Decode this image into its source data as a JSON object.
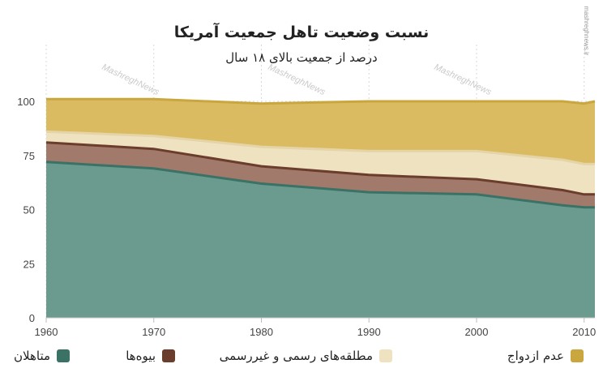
{
  "chart_data": {
    "type": "area",
    "title": "نسبت وضعیت تاهل جمعیت آمریکا",
    "subtitle": "درصد از جمعیت بالای ۱۸ سال",
    "x": [
      1960,
      1970,
      1980,
      1990,
      2000,
      2008,
      2010,
      2011
    ],
    "series": [
      {
        "name": "متاهلان",
        "color": "#6b9a8f",
        "line": "#3b7266",
        "values": [
          72,
          69,
          62,
          58,
          57,
          52,
          51,
          51
        ]
      },
      {
        "name": "بیوه‌ها",
        "color": "#a27a6c",
        "line": "#6b3d2c",
        "values": [
          9,
          9,
          8,
          8,
          7,
          7,
          6,
          6
        ]
      },
      {
        "name": "مطلقه‌های رسمی و غیررسمی",
        "color": "#efe2c0",
        "line": "#e4d4a8",
        "values": [
          5,
          6,
          9,
          11,
          13,
          14,
          14,
          14
        ]
      },
      {
        "name": "عدم ازدواج",
        "color": "#dbbb62",
        "line": "#c9a73e",
        "values": [
          15,
          17,
          20,
          23,
          23,
          27,
          28,
          29
        ]
      }
    ],
    "legend_swatch_colors": [
      "#3b7266",
      "#6b3d2c",
      "#efe2c0",
      "#c9a73e"
    ],
    "xticks": [
      1960,
      1970,
      1980,
      1990,
      2000,
      2010
    ],
    "yticks": [
      0,
      25,
      50,
      75,
      100
    ],
    "xlim": [
      1960,
      2011
    ],
    "ylim": [
      0,
      100
    ],
    "xlabel": "",
    "ylabel": "",
    "grid": true,
    "legend_position": "bottom",
    "watermark": "MashreghNews",
    "logo_text": "mashreghnews.ir"
  }
}
